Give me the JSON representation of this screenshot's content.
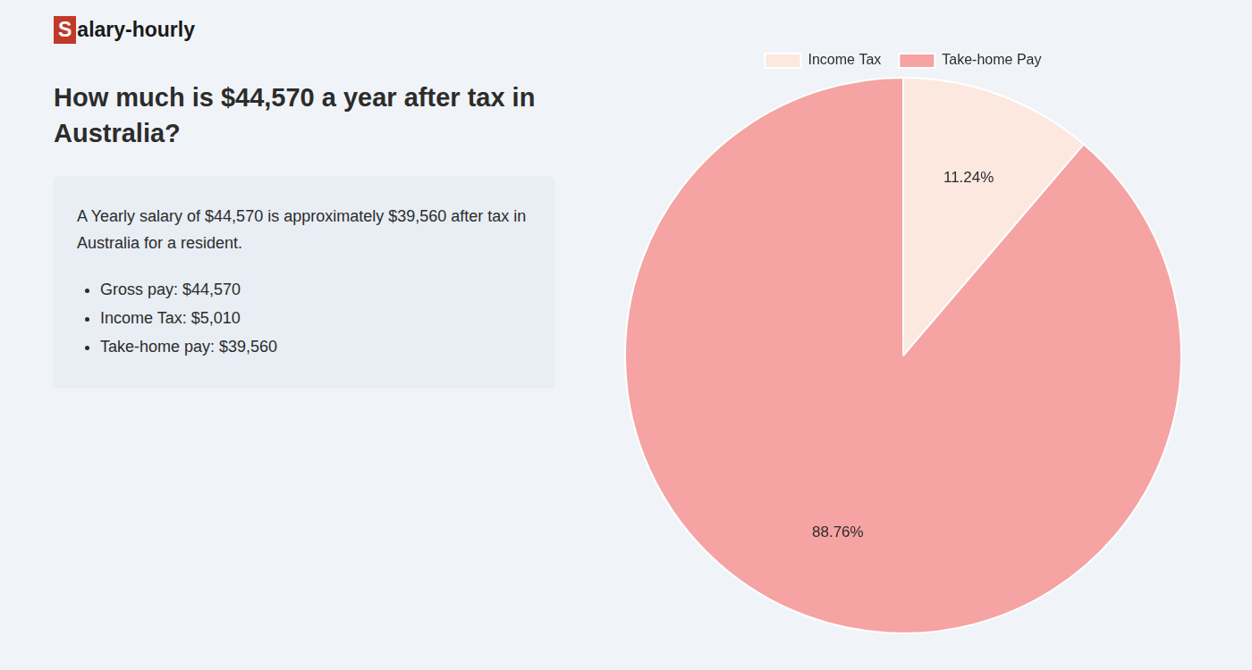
{
  "chart_data": {
    "type": "pie",
    "title": [
      "How much is $44,570 a year after tax in",
      "Australia?"
    ],
    "annotations": [
      "Salary-hourly",
      "A Yearly salary of $44,570 is approximately $39,560 after tax in Australia for a resident.",
      "Gross pay: $44,570",
      "Income Tax: $5,010",
      "Take-home pay: $39,560"
    ],
    "categories": [
      "Income Tax",
      "Take-home Pay"
    ],
    "values": [
      11.24,
      88.76
    ],
    "value_labels": [
      "11.24%",
      "88.76%"
    ],
    "colors": [
      "#fce8df",
      "#f5a3a3"
    ],
    "data_labels": true,
    "legend": "top"
  }
}
